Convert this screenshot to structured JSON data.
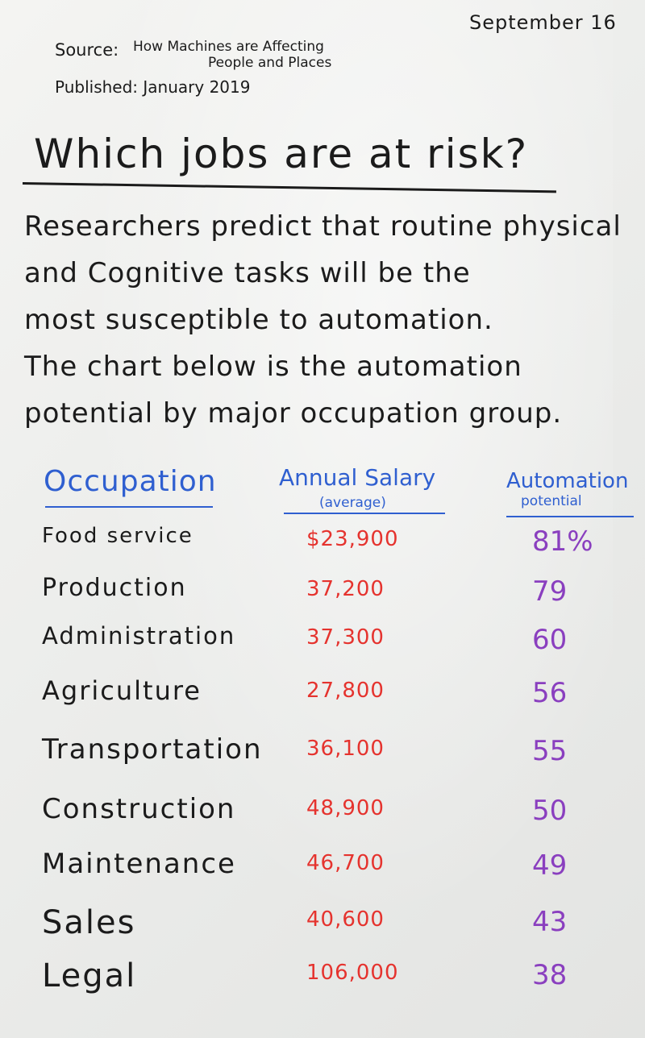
{
  "date": "September 16",
  "source": {
    "label": "Source:",
    "line1": "How Machines are Affecting",
    "line2": "People and Places"
  },
  "published": "Published: January 2019",
  "title": "Which jobs are at risk?",
  "paragraph_lines": [
    "Researchers predict that routine physical",
    "and Cognitive tasks will be the",
    "most susceptible to automation.",
    "The chart below is the automation",
    "potential by major occupation group."
  ],
  "headers": {
    "occupation": "Occupation",
    "salary": "Annual Salary",
    "salary_sub": "(average)",
    "automation": "Automation",
    "automation_sub": "potential"
  },
  "colors": {
    "ink_black": "#1b1b1b",
    "ink_blue": "#2f5fd0",
    "ink_red": "#e5332e",
    "ink_purple": "#8a3fbf"
  },
  "rows": [
    {
      "occupation": "Food service",
      "salary": "$23,900",
      "potential": "81%"
    },
    {
      "occupation": "Production",
      "salary": "37,200",
      "potential": "79"
    },
    {
      "occupation": "Administration",
      "salary": "37,300",
      "potential": "60"
    },
    {
      "occupation": "Agriculture",
      "salary": "27,800",
      "potential": "56"
    },
    {
      "occupation": "Transportation",
      "salary": "36,100",
      "potential": "55"
    },
    {
      "occupation": "Construction",
      "salary": "48,900",
      "potential": "50"
    },
    {
      "occupation": "Maintenance",
      "salary": "46,700",
      "potential": "49"
    },
    {
      "occupation": "Sales",
      "salary": "40,600",
      "potential": "43"
    },
    {
      "occupation": "Legal",
      "salary": "106,000",
      "potential": "38"
    }
  ]
}
